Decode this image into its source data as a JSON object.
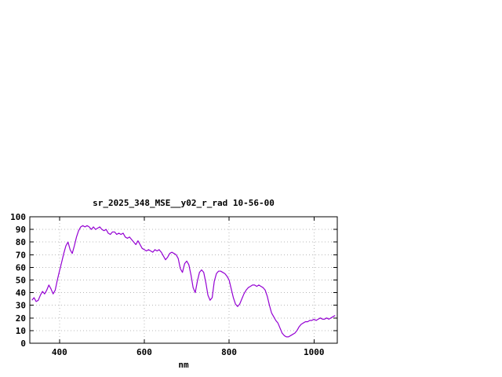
{
  "page": {
    "background": "#ffffff"
  },
  "chart_data": {
    "type": "line",
    "title": "sr_2025_348_MSE__y02_r_rad 10-56-00",
    "xlabel": "nm",
    "ylabel": "",
    "xlim": [
      330,
      1055
    ],
    "ylim": [
      0,
      100
    ],
    "x_ticks": [
      400,
      600,
      800,
      1000
    ],
    "y_ticks": [
      0,
      10,
      20,
      30,
      40,
      50,
      60,
      70,
      80,
      90,
      100
    ],
    "grid": true,
    "legend": "none",
    "line_color": "#9400d3",
    "grid_color": "#b8b8b8",
    "border_color": "#000000",
    "series": [
      {
        "name": "sr_2025_348_MSE__y02_r_rad",
        "points": [
          [
            335,
            34
          ],
          [
            340,
            36
          ],
          [
            345,
            33
          ],
          [
            350,
            34
          ],
          [
            355,
            38
          ],
          [
            360,
            41
          ],
          [
            365,
            39
          ],
          [
            370,
            42
          ],
          [
            375,
            46
          ],
          [
            380,
            43
          ],
          [
            385,
            39
          ],
          [
            390,
            42
          ],
          [
            395,
            50
          ],
          [
            400,
            57
          ],
          [
            405,
            64
          ],
          [
            410,
            71
          ],
          [
            415,
            77
          ],
          [
            420,
            80
          ],
          [
            425,
            74
          ],
          [
            430,
            71
          ],
          [
            435,
            77
          ],
          [
            440,
            84
          ],
          [
            445,
            89
          ],
          [
            450,
            92
          ],
          [
            455,
            93
          ],
          [
            460,
            92
          ],
          [
            465,
            93
          ],
          [
            470,
            92
          ],
          [
            475,
            90
          ],
          [
            480,
            92
          ],
          [
            485,
            90
          ],
          [
            490,
            91
          ],
          [
            495,
            92
          ],
          [
            500,
            90
          ],
          [
            505,
            89
          ],
          [
            510,
            90
          ],
          [
            515,
            87
          ],
          [
            520,
            86
          ],
          [
            525,
            88
          ],
          [
            530,
            88
          ],
          [
            535,
            86
          ],
          [
            540,
            87
          ],
          [
            545,
            86
          ],
          [
            550,
            87
          ],
          [
            555,
            84
          ],
          [
            560,
            83
          ],
          [
            565,
            84
          ],
          [
            570,
            82
          ],
          [
            575,
            80
          ],
          [
            580,
            78
          ],
          [
            585,
            81
          ],
          [
            590,
            78
          ],
          [
            595,
            75
          ],
          [
            600,
            74
          ],
          [
            605,
            73
          ],
          [
            610,
            74
          ],
          [
            615,
            73
          ],
          [
            620,
            72
          ],
          [
            625,
            74
          ],
          [
            630,
            73
          ],
          [
            635,
            74
          ],
          [
            640,
            72
          ],
          [
            645,
            69
          ],
          [
            650,
            66
          ],
          [
            655,
            68
          ],
          [
            660,
            71
          ],
          [
            665,
            72
          ],
          [
            670,
            71
          ],
          [
            675,
            70
          ],
          [
            680,
            67
          ],
          [
            685,
            59
          ],
          [
            690,
            56
          ],
          [
            695,
            63
          ],
          [
            700,
            65
          ],
          [
            705,
            62
          ],
          [
            710,
            54
          ],
          [
            715,
            44
          ],
          [
            720,
            40
          ],
          [
            725,
            49
          ],
          [
            730,
            56
          ],
          [
            735,
            58
          ],
          [
            740,
            56
          ],
          [
            745,
            48
          ],
          [
            750,
            38
          ],
          [
            755,
            34
          ],
          [
            760,
            36
          ],
          [
            765,
            49
          ],
          [
            770,
            55
          ],
          [
            775,
            57
          ],
          [
            780,
            57
          ],
          [
            785,
            56
          ],
          [
            790,
            55
          ],
          [
            795,
            53
          ],
          [
            800,
            50
          ],
          [
            805,
            43
          ],
          [
            810,
            36
          ],
          [
            815,
            31
          ],
          [
            820,
            29
          ],
          [
            825,
            31
          ],
          [
            830,
            35
          ],
          [
            835,
            39
          ],
          [
            840,
            42
          ],
          [
            845,
            44
          ],
          [
            850,
            45
          ],
          [
            855,
            46
          ],
          [
            860,
            46
          ],
          [
            865,
            45
          ],
          [
            870,
            46
          ],
          [
            875,
            45
          ],
          [
            880,
            44
          ],
          [
            885,
            42
          ],
          [
            890,
            37
          ],
          [
            895,
            30
          ],
          [
            900,
            24
          ],
          [
            905,
            21
          ],
          [
            910,
            18
          ],
          [
            915,
            16
          ],
          [
            920,
            12
          ],
          [
            925,
            8
          ],
          [
            930,
            6
          ],
          [
            935,
            5
          ],
          [
            940,
            5
          ],
          [
            945,
            6
          ],
          [
            950,
            7
          ],
          [
            955,
            8
          ],
          [
            960,
            10
          ],
          [
            965,
            13
          ],
          [
            970,
            15
          ],
          [
            975,
            16
          ],
          [
            980,
            17
          ],
          [
            985,
            17
          ],
          [
            990,
            18
          ],
          [
            995,
            18
          ],
          [
            1000,
            19
          ],
          [
            1005,
            18
          ],
          [
            1010,
            19
          ],
          [
            1015,
            20
          ],
          [
            1020,
            19
          ],
          [
            1025,
            19
          ],
          [
            1030,
            20
          ],
          [
            1035,
            19
          ],
          [
            1040,
            20
          ],
          [
            1045,
            21
          ],
          [
            1050,
            22
          ]
        ]
      }
    ]
  }
}
